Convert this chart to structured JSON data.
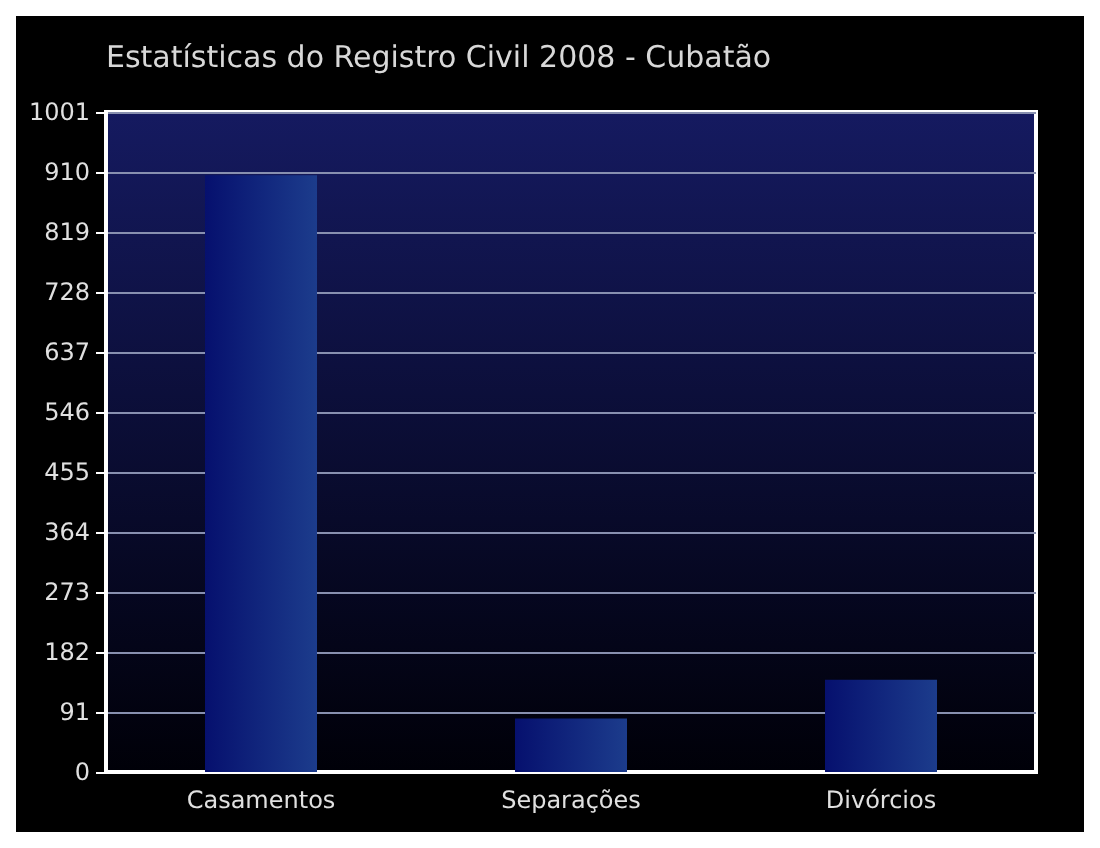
{
  "chart_data": {
    "type": "bar",
    "title": "Estatísticas do Registro Civil 2008 - Cubatão",
    "categories": [
      "Casamentos",
      "Separações",
      "Divórcios"
    ],
    "values": [
      905,
      81,
      140
    ],
    "color": "#1c3c8c",
    "ylim": [
      0,
      1001
    ],
    "yticks": [
      0,
      91,
      182,
      273,
      364,
      455,
      546,
      637,
      728,
      819,
      910,
      1001
    ],
    "grid": "y"
  }
}
